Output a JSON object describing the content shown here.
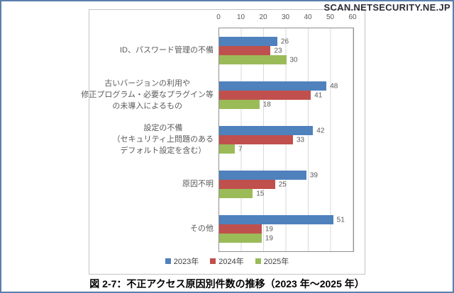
{
  "watermark": "SCAN.NETSECURITY.NE.JP",
  "caption": "図 2-7：不正アクセス原因別件数の推移（2023 年～2025 年）",
  "chart_data": {
    "type": "bar",
    "orientation": "horizontal",
    "title": "",
    "xlabel": "",
    "ylabel": "",
    "xlim": [
      0,
      60
    ],
    "x_ticks": [
      0,
      10,
      20,
      30,
      40,
      50,
      60
    ],
    "grid": true,
    "legend_position": "bottom",
    "value_labels_shown": true,
    "categories": [
      "ID、パスワード管理の不備",
      "古いバージョンの利用や修正プログラム・必要なプラグイン等の未導入によるもの",
      "設定の不備（セキュリティ上問題のあるデフォルト設定を含む）",
      "原因不明",
      "その他"
    ],
    "category_lines": [
      [
        "ID、パスワード管理の不備"
      ],
      [
        "古いバージョンの利用や",
        "修正プログラム・必要なプラグイン等",
        "の未導入によるもの"
      ],
      [
        "設定の不備",
        "（セキュリティ上問題のある",
        "デフォルト設定を含む）"
      ],
      [
        "原因不明"
      ],
      [
        "その他"
      ]
    ],
    "series": [
      {
        "name": "2023年",
        "color": "#4F81BD",
        "values": [
          26,
          48,
          42,
          39,
          51
        ]
      },
      {
        "name": "2024年",
        "color": "#C0504D",
        "values": [
          23,
          41,
          33,
          25,
          19
        ]
      },
      {
        "name": "2025年",
        "color": "#9BBB59",
        "values": [
          30,
          18,
          7,
          15,
          19
        ]
      }
    ]
  },
  "colors": {
    "outer_border": "#5b7fad",
    "frame_border": "#c3c3c3",
    "plot_border": "#8f8f8f",
    "gridline": "#d9d9d9",
    "axis_text": "#595959",
    "caption_text": "#000000"
  }
}
